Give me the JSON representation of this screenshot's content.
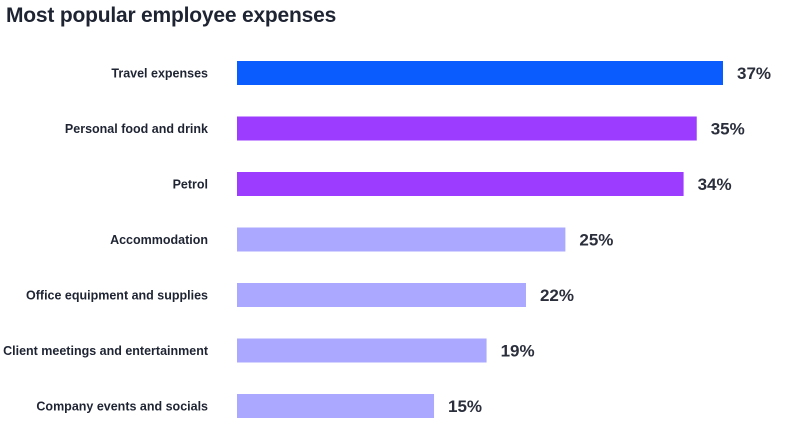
{
  "chart_data": {
    "type": "bar",
    "orientation": "horizontal",
    "title": "Most popular employee expenses",
    "xlabel": "",
    "ylabel": "",
    "value_suffix": "%",
    "xlim": [
      0,
      37
    ],
    "grid": false,
    "legend": "none",
    "categories": [
      "Travel expenses",
      "Personal food and drink",
      "Petrol",
      "Accommodation",
      "Office equipment and supplies",
      "Client meetings and entertainment",
      "Company events and socials"
    ],
    "values": [
      37,
      35,
      34,
      25,
      22,
      19,
      15
    ],
    "value_labels": [
      "37%",
      "35%",
      "34%",
      "25%",
      "22%",
      "19%",
      "15%"
    ],
    "colors": [
      "#0a5cff",
      "#9b3cff",
      "#9b3cff",
      "#aaa8ff",
      "#aaa8ff",
      "#aaa8ff",
      "#aaa8ff"
    ]
  }
}
